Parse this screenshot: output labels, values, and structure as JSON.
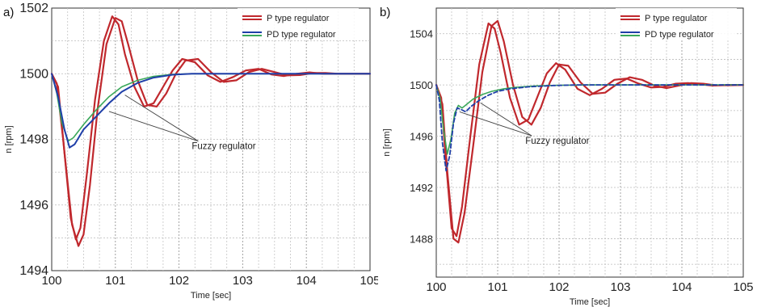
{
  "chart_data": [
    {
      "type": "line",
      "panel_label": "a)",
      "xlabel": "Time [sec]",
      "ylabel": "n [rpm]",
      "xlim": [
        100,
        105
      ],
      "ylim": [
        1494,
        1502
      ],
      "xticks": [
        100,
        101,
        102,
        103,
        104,
        105
      ],
      "yticks": [
        1494,
        1496,
        1498,
        1500,
        1502
      ],
      "grid": true,
      "legend": {
        "placement": "top-right",
        "entries": [
          {
            "label": "P type regulator",
            "color": "#c0282d"
          },
          {
            "label": "PD type regulator",
            "color": "#1f3fa8",
            "color2": "#3aa85a"
          }
        ]
      },
      "annotation": {
        "text": "Fuzzy regulator",
        "targets": [
          [
            100.9,
            1498.85
          ],
          [
            101.15,
            1499.35
          ]
        ],
        "label_at": [
          102.2,
          1497.7
        ]
      },
      "series": [
        {
          "color": "#c0282d",
          "width": 2.2,
          "x": [
            100,
            100.08,
            100.18,
            100.3,
            100.38,
            100.45,
            100.55,
            100.68,
            100.82,
            100.95,
            101.05,
            101.15,
            101.3,
            101.45,
            101.6,
            101.75,
            101.9,
            102.05,
            102.25,
            102.45,
            102.65,
            102.85,
            103.05,
            103.25,
            103.45,
            103.65,
            103.85,
            104.05,
            104.25,
            104.5,
            104.75,
            105
          ],
          "y": [
            1500,
            1499.7,
            1498.0,
            1495.6,
            1494.95,
            1495.3,
            1496.9,
            1499.2,
            1501.0,
            1501.75,
            1501.5,
            1500.6,
            1499.6,
            1499.0,
            1499.1,
            1499.6,
            1500.1,
            1500.45,
            1500.35,
            1499.95,
            1499.75,
            1499.9,
            1500.1,
            1500.15,
            1499.98,
            1499.93,
            1500.0,
            1500.04,
            1500.0,
            1500.0,
            1500.0,
            1500.0
          ]
        },
        {
          "color": "#c0282d",
          "width": 2.2,
          "x": [
            100,
            100.1,
            100.2,
            100.32,
            100.42,
            100.5,
            100.6,
            100.72,
            100.86,
            101.0,
            101.1,
            101.2,
            101.35,
            101.5,
            101.65,
            101.8,
            101.95,
            102.1,
            102.3,
            102.5,
            102.7,
            102.9,
            103.1,
            103.3,
            103.5,
            103.7,
            103.9,
            104.1,
            104.3,
            104.5,
            104.75,
            105
          ],
          "y": [
            1500,
            1499.6,
            1497.6,
            1495.4,
            1494.75,
            1495.1,
            1496.6,
            1498.9,
            1500.9,
            1501.7,
            1501.6,
            1500.9,
            1499.8,
            1499.05,
            1499.0,
            1499.4,
            1500.0,
            1500.4,
            1500.45,
            1500.05,
            1499.75,
            1499.8,
            1500.05,
            1500.15,
            1500.05,
            1499.95,
            1499.96,
            1500.02,
            1500.02,
            1500.0,
            1500.0,
            1500.0
          ]
        },
        {
          "color": "#3aa85a",
          "width": 1.6,
          "x": [
            100,
            100.08,
            100.16,
            100.26,
            100.34,
            100.5,
            100.7,
            100.9,
            101.1,
            101.35,
            101.6,
            101.9,
            102.2,
            102.6,
            103,
            103.5,
            104,
            104.5,
            105
          ],
          "y": [
            1500,
            1499.4,
            1498.5,
            1497.95,
            1498.05,
            1498.45,
            1498.9,
            1499.3,
            1499.6,
            1499.8,
            1499.92,
            1499.98,
            1500.0,
            1500.0,
            1500.0,
            1500.0,
            1500.0,
            1500.0,
            1500.0
          ]
        },
        {
          "color": "#1f3fa8",
          "width": 2.0,
          "x": [
            100,
            100.1,
            100.2,
            100.28,
            100.36,
            100.5,
            100.7,
            100.9,
            101.1,
            101.35,
            101.6,
            101.9,
            102.2,
            102.6,
            103,
            103.5,
            104,
            104.5,
            105
          ],
          "y": [
            1500,
            1499.3,
            1498.3,
            1497.75,
            1497.85,
            1498.3,
            1498.7,
            1499.1,
            1499.45,
            1499.72,
            1499.88,
            1499.97,
            1500.0,
            1500.0,
            1500.0,
            1500.0,
            1500.0,
            1500.0,
            1500.0
          ]
        }
      ]
    },
    {
      "type": "line",
      "panel_label": "b)",
      "xlabel": "Time [sec]",
      "ylabel": "n [rpm]",
      "xlim": [
        100,
        105
      ],
      "ylim": [
        1485,
        1506
      ],
      "xticks": [
        100,
        101,
        102,
        103,
        104,
        105
      ],
      "yticks": [
        1488,
        1492,
        1496,
        1500,
        1504
      ],
      "grid": true,
      "legend": {
        "placement": "top-right",
        "entries": [
          {
            "label": "P type regulator",
            "color": "#c0282d"
          },
          {
            "label": "PD type regulator",
            "color": "#1f3fa8",
            "color2": "#3aa85a"
          }
        ]
      },
      "annotation": {
        "text": "Fuzzy regulator",
        "targets": [
          [
            100.72,
            1498.6
          ],
          [
            100.38,
            1497.9
          ]
        ],
        "label_at": [
          101.45,
          1495.4
        ]
      },
      "series": [
        {
          "color": "#c0282d",
          "width": 2.2,
          "x": [
            100,
            100.08,
            100.15,
            100.25,
            100.33,
            100.42,
            100.55,
            100.7,
            100.85,
            100.95,
            101.05,
            101.2,
            101.35,
            101.5,
            101.65,
            101.8,
            101.95,
            102.1,
            102.3,
            102.5,
            102.7,
            102.9,
            103.1,
            103.3,
            103.5,
            103.7,
            103.9,
            104.1,
            104.3,
            104.5,
            104.75,
            105
          ],
          "y": [
            1500,
            1499.0,
            1494.5,
            1488.8,
            1488.2,
            1490.5,
            1495.8,
            1501.6,
            1504.8,
            1504.4,
            1502.5,
            1499.0,
            1496.9,
            1497.3,
            1499.1,
            1500.9,
            1501.7,
            1501.2,
            1499.7,
            1499.2,
            1499.7,
            1500.4,
            1500.5,
            1500.1,
            1499.8,
            1499.85,
            1500.1,
            1500.15,
            1500.05,
            1499.95,
            1500.0,
            1500.0
          ]
        },
        {
          "color": "#c0282d",
          "width": 2.2,
          "x": [
            100,
            100.1,
            100.18,
            100.28,
            100.36,
            100.46,
            100.6,
            100.75,
            100.9,
            101.0,
            101.1,
            101.25,
            101.4,
            101.55,
            101.7,
            101.85,
            102.0,
            102.15,
            102.35,
            102.55,
            102.75,
            102.95,
            103.15,
            103.35,
            103.55,
            103.75,
            103.95,
            104.15,
            104.35,
            104.55,
            104.8,
            105
          ],
          "y": [
            1500,
            1498.5,
            1493.2,
            1488.0,
            1487.7,
            1490.0,
            1495.2,
            1501.0,
            1504.6,
            1505.0,
            1503.4,
            1500.0,
            1497.5,
            1496.9,
            1498.2,
            1500.2,
            1501.6,
            1501.5,
            1500.2,
            1499.3,
            1499.4,
            1500.1,
            1500.6,
            1500.4,
            1499.95,
            1499.75,
            1499.95,
            1500.15,
            1500.1,
            1499.97,
            1499.98,
            1500.0
          ]
        },
        {
          "color": "#3aa85a",
          "width": 1.6,
          "x": [
            100,
            100.06,
            100.12,
            100.18,
            100.24,
            100.3,
            100.36,
            100.42,
            100.5,
            100.6,
            100.75,
            100.9,
            101.1,
            101.3,
            101.6,
            102.0,
            102.5,
            103,
            103.5,
            104,
            104.5,
            105
          ],
          "y": [
            1500,
            1499.0,
            1496.5,
            1494.6,
            1495.8,
            1497.8,
            1498.4,
            1498.2,
            1498.5,
            1498.9,
            1499.25,
            1499.5,
            1499.7,
            1499.82,
            1499.92,
            1499.97,
            1500.0,
            1500.0,
            1500.0,
            1500.0,
            1500.0,
            1500.0
          ]
        },
        {
          "color": "#1f3fa8",
          "width": 1.8,
          "dashed": true,
          "x": [
            100,
            100.05,
            100.1,
            100.16,
            100.22,
            100.28,
            100.34,
            100.4,
            100.48,
            100.56,
            100.7,
            100.85,
            101.0,
            101.2,
            101.5,
            101.9,
            102.3,
            102.8,
            103.3,
            103.8,
            104.3,
            105
          ],
          "y": [
            1500,
            1498.8,
            1495.5,
            1493.3,
            1494.5,
            1497.0,
            1498.2,
            1498.1,
            1497.9,
            1498.3,
            1498.8,
            1499.2,
            1499.5,
            1499.7,
            1499.85,
            1499.95,
            1500.0,
            1500.0,
            1500.0,
            1500.0,
            1500.0,
            1500.0
          ]
        }
      ]
    }
  ]
}
